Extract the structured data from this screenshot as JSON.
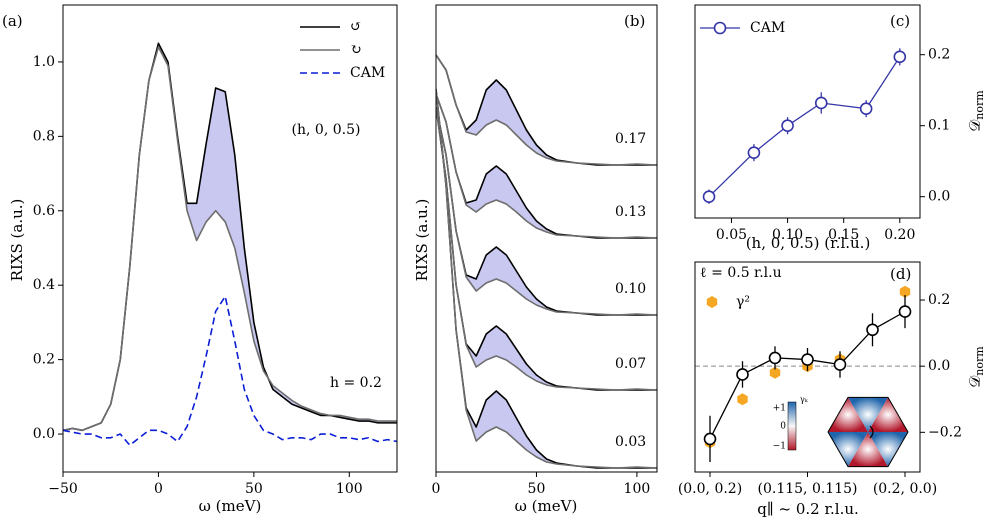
{
  "chart_data": [
    {
      "type": "line",
      "panel_label": "(a)",
      "x_label": "ω (meV)",
      "y_label": "RIXS (a.u.)",
      "annotations": [
        "(h, 0, 0.5)",
        "h = 0.2"
      ],
      "x": [
        -50,
        -45,
        -40,
        -35,
        -30,
        -25,
        -20,
        -15,
        -10,
        -5,
        0,
        5,
        10,
        15,
        20,
        25,
        30,
        35,
        40,
        45,
        50,
        55,
        60,
        65,
        70,
        75,
        80,
        85,
        90,
        95,
        100,
        105,
        110,
        115,
        120,
        125
      ],
      "series": [
        {
          "name": "↺",
          "color": "#000000",
          "values": [
            0.01,
            0.015,
            0.01,
            0.02,
            0.03,
            0.08,
            0.2,
            0.45,
            0.75,
            0.95,
            1.05,
            1.0,
            0.8,
            0.62,
            0.62,
            0.78,
            0.93,
            0.92,
            0.75,
            0.5,
            0.3,
            0.18,
            0.12,
            0.1,
            0.08,
            0.07,
            0.06,
            0.05,
            0.05,
            0.045,
            0.04,
            0.035,
            0.035,
            0.03,
            0.03,
            0.03
          ]
        },
        {
          "name": "↻",
          "color": "#6e6e6e",
          "values": [
            0.01,
            0.015,
            0.01,
            0.02,
            0.03,
            0.08,
            0.2,
            0.45,
            0.75,
            0.95,
            1.04,
            0.99,
            0.79,
            0.6,
            0.52,
            0.57,
            0.6,
            0.57,
            0.5,
            0.38,
            0.25,
            0.17,
            0.13,
            0.11,
            0.09,
            0.075,
            0.065,
            0.055,
            0.05,
            0.05,
            0.045,
            0.04,
            0.04,
            0.035,
            0.035,
            0.035
          ]
        },
        {
          "name": "CAM",
          "color": "#0a1fd6",
          "dashed": true,
          "values": [
            0.01,
            0.005,
            0,
            0,
            -0.01,
            -0.01,
            0,
            -0.03,
            -0.01,
            0.01,
            0.01,
            0,
            -0.02,
            0.02,
            0.1,
            0.21,
            0.33,
            0.37,
            0.25,
            0.12,
            0.05,
            0.01,
            0,
            -0.015,
            -0.01,
            -0.01,
            -0.015,
            0,
            0,
            -0.01,
            -0.01,
            -0.015,
            -0.01,
            -0.02,
            -0.015,
            -0.02
          ]
        }
      ],
      "shade_color": "#c8c8f0",
      "xlim": [
        -50,
        125
      ],
      "ylim": [
        -0.102,
        1.153
      ],
      "xticks": [
        {
          "value": -50,
          "label": "−50"
        },
        0,
        50,
        100
      ],
      "yticks": [
        {
          "value": 0,
          "label": "0.0"
        },
        0.2,
        0.4,
        0.6,
        0.8,
        {
          "value": 1,
          "label": "1.0"
        }
      ]
    },
    {
      "type": "line",
      "panel_label": "(b)",
      "x_label": "ω (meV)",
      "y_label": "RIXS (a.u.)",
      "x": [
        0,
        5,
        10,
        15,
        20,
        25,
        30,
        35,
        40,
        45,
        50,
        55,
        60,
        70,
        80,
        90,
        100,
        110
      ],
      "series": [
        {
          "name": "0.17",
          "color": "#000000",
          "values": [
            4.17,
            4.02,
            3.67,
            3.42,
            3.52,
            3.82,
            3.92,
            3.82,
            3.62,
            3.42,
            3.27,
            3.17,
            3.12,
            3.09,
            3.07,
            3.07,
            3.07,
            3.07
          ]
        },
        {
          "color": "#6e6e6e",
          "values": [
            4.17,
            4.02,
            3.67,
            3.4,
            3.37,
            3.47,
            3.52,
            3.47,
            3.37,
            3.27,
            3.19,
            3.14,
            3.11,
            3.09,
            3.08,
            3.07,
            3.08,
            3.07
          ]
        },
        {
          "name": "0.13",
          "color": "#000000",
          "values": [
            3.78,
            3.5,
            3.0,
            2.69,
            2.72,
            2.98,
            3.06,
            2.98,
            2.81,
            2.64,
            2.51,
            2.43,
            2.38,
            2.36,
            2.34,
            2.34,
            2.34,
            2.34
          ]
        },
        {
          "color": "#6e6e6e",
          "values": [
            3.78,
            3.5,
            3.0,
            2.67,
            2.6,
            2.68,
            2.72,
            2.68,
            2.6,
            2.51,
            2.44,
            2.4,
            2.37,
            2.36,
            2.35,
            2.34,
            2.35,
            2.34
          ]
        },
        {
          "name": "0.10",
          "color": "#000000",
          "values": [
            3.65,
            3.17,
            2.41,
            1.97,
            1.93,
            2.17,
            2.25,
            2.17,
            2.01,
            1.85,
            1.73,
            1.65,
            1.61,
            1.59,
            1.57,
            1.57,
            1.57,
            1.57
          ]
        },
        {
          "color": "#6e6e6e",
          "values": [
            3.65,
            3.17,
            2.41,
            1.95,
            1.81,
            1.89,
            1.93,
            1.89,
            1.81,
            1.73,
            1.67,
            1.63,
            1.6,
            1.59,
            1.58,
            1.57,
            1.58,
            1.57
          ]
        },
        {
          "name": "0.07",
          "color": "#000000",
          "values": [
            3.65,
            2.93,
            1.87,
            1.28,
            1.16,
            1.38,
            1.46,
            1.38,
            1.23,
            1.08,
            0.97,
            0.9,
            0.86,
            0.84,
            0.82,
            0.82,
            0.82,
            0.82
          ]
        },
        {
          "color": "#6e6e6e",
          "values": [
            3.65,
            2.93,
            1.87,
            1.27,
            1.05,
            1.12,
            1.16,
            1.12,
            1.05,
            0.97,
            0.91,
            0.87,
            0.85,
            0.84,
            0.83,
            0.82,
            0.83,
            0.82
          ]
        },
        {
          "name": "0.03",
          "color": "#000000",
          "values": [
            3.83,
            2.86,
            1.42,
            0.64,
            0.45,
            0.72,
            0.81,
            0.72,
            0.54,
            0.36,
            0.22,
            0.13,
            0.09,
            0.06,
            0.04,
            0.04,
            0.04,
            0.04
          ]
        },
        {
          "color": "#6e6e6e",
          "values": [
            3.83,
            2.86,
            1.42,
            0.62,
            0.31,
            0.4,
            0.45,
            0.4,
            0.31,
            0.22,
            0.15,
            0.1,
            0.08,
            0.06,
            0.05,
            0.04,
            0.05,
            0.04
          ]
        }
      ],
      "shade_color": "#c8c8f0",
      "xlim": [
        0,
        110
      ],
      "ylim": [
        0,
        4.67
      ],
      "xticks": [
        0,
        50,
        100
      ]
    },
    {
      "type": "line",
      "panel_label": "(c)",
      "x_label": "(h, 0, 0.5) (r.l.u.)",
      "y_label": "𝒟",
      "y_label_sub": "norm",
      "x": [
        0.03,
        0.07,
        0.1,
        0.13,
        0.17,
        0.2
      ],
      "series": [
        {
          "name": "CAM",
          "color": "#3535a8",
          "marker": "o",
          "values": [
            0,
            0.062,
            0.1,
            0.132,
            0.124,
            0.197
          ],
          "errors": [
            0.01,
            0.012,
            0.012,
            0.015,
            0.012,
            0.012
          ]
        }
      ],
      "xlim": [
        0.0175,
        0.218
      ],
      "ylim": [
        -0.03,
        0.27
      ],
      "xticks": [
        0.05,
        {
          "value": 0.1,
          "label": "0.10"
        },
        0.15,
        {
          "value": 0.2,
          "label": "0.20"
        }
      ],
      "yticks": [
        {
          "value": 0,
          "label": "0.0"
        },
        0.1,
        0.2
      ]
    },
    {
      "type": "scatter",
      "panel_label": "(d)",
      "x_label": "q∥ ~ 0.2 r.l.u.",
      "y_label": "𝒟",
      "y_label_sub": "norm",
      "annotations": [
        "ℓ = 0.5 r.l.u"
      ],
      "categories": [
        "(0.0, 0.2)",
        null,
        null,
        "(0.115, 0.115)",
        null,
        null,
        "(0.2, 0.0)"
      ],
      "series": [
        {
          "color": "#000000",
          "marker": "o",
          "connect": true,
          "values": [
            -0.22,
            -0.025,
            0.025,
            0.02,
            0.005,
            0.11,
            0.165
          ],
          "errors": [
            0.07,
            0.04,
            0.035,
            0.035,
            0.04,
            0.05,
            0.05
          ]
        },
        {
          "name": "γ²",
          "color": "#f5a623",
          "marker": "hexagon",
          "values": [
            -0.23,
            -0.1,
            -0.02,
            0,
            0.02,
            null,
            0.225
          ]
        }
      ],
      "ylim": [
        -0.32,
        0.315
      ],
      "yticks": [
        {
          "value": -0.2,
          "label": "−0.2"
        },
        {
          "value": 0,
          "label": "0.0"
        },
        0.2
      ],
      "zero_line": true,
      "inset": {
        "label": "γₖ",
        "ticks": [
          "+1",
          "0",
          "−1"
        ]
      }
    }
  ]
}
